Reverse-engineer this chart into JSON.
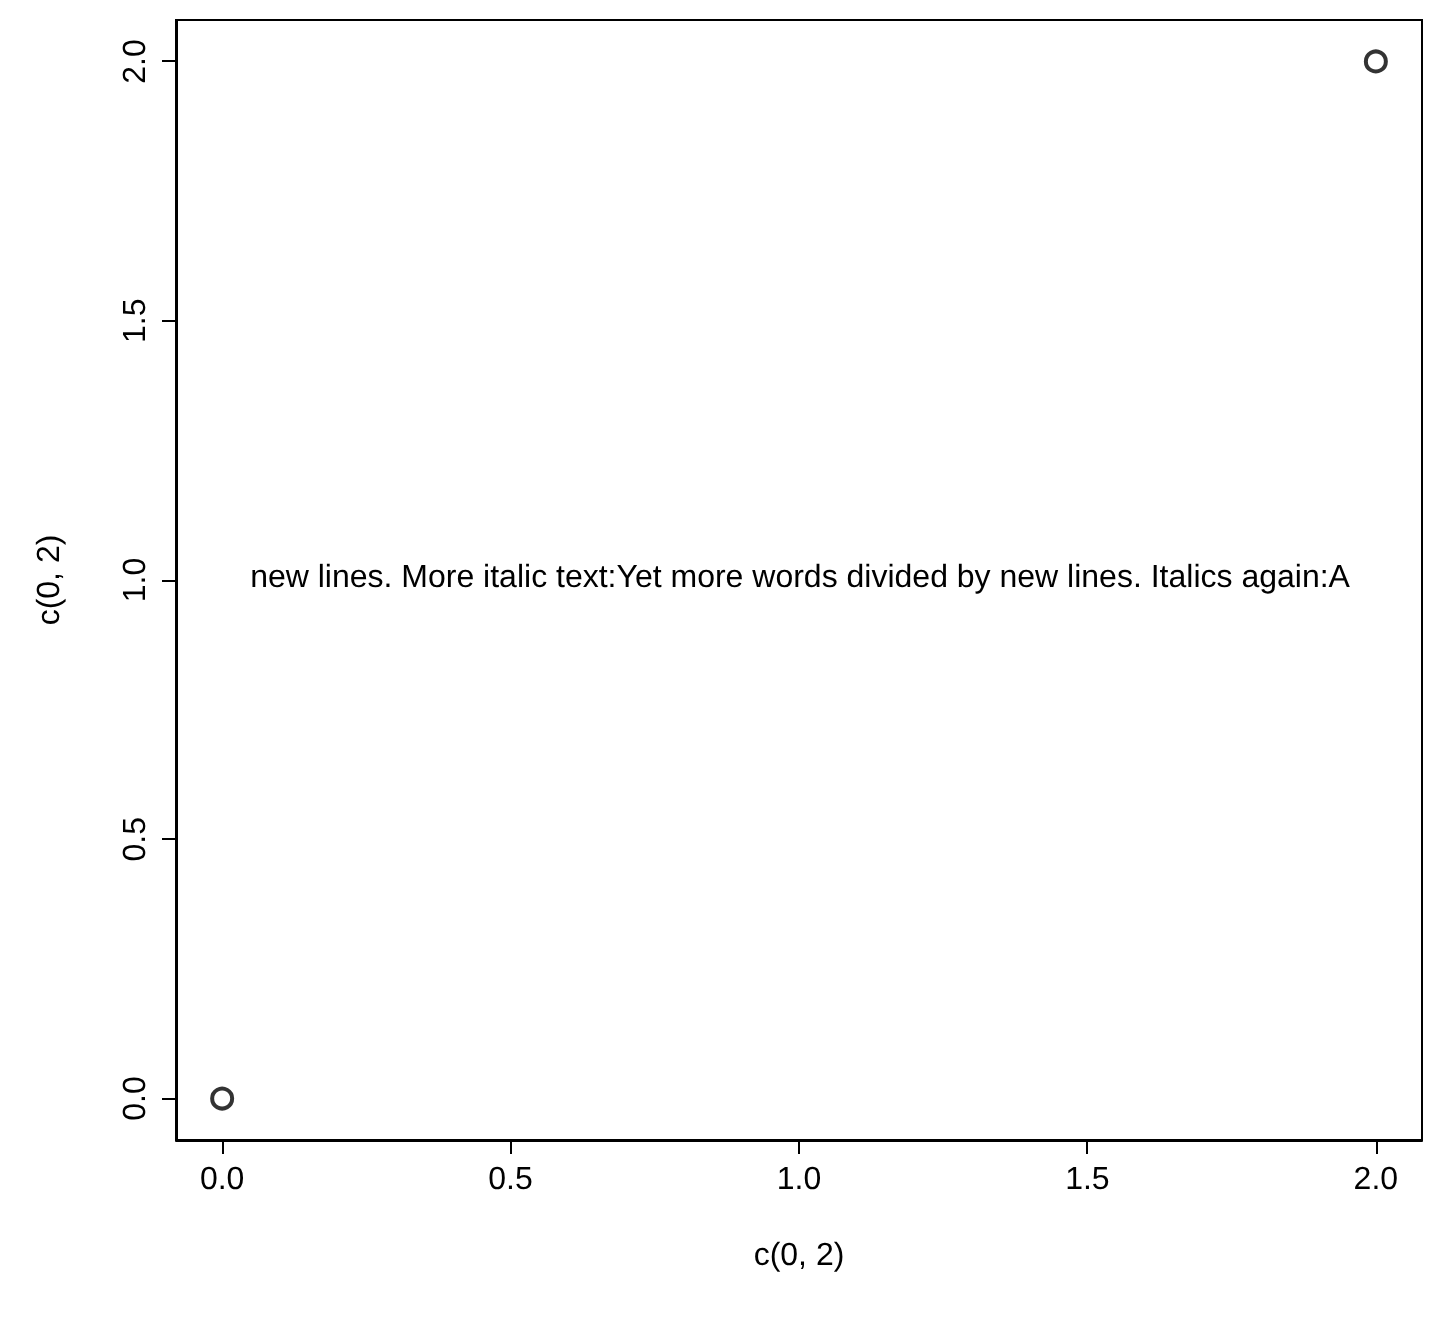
{
  "chart_data": {
    "type": "scatter",
    "xlabel": "c(0, 2)",
    "ylabel": "c(0, 2)",
    "x": [
      0,
      2
    ],
    "series": [
      {
        "color": "#000000",
        "values": [
          0,
          2
        ]
      }
    ],
    "xlim": [
      -0.08,
      2.08
    ],
    "ylim": [
      -0.08,
      2.08
    ],
    "xticks": [
      {
        "value": 0,
        "label": "0.0"
      },
      {
        "value": 0.5,
        "label": "0.5"
      },
      {
        "value": 1,
        "label": "1.0"
      },
      {
        "value": 1.5,
        "label": "1.5"
      },
      {
        "value": 2,
        "label": "2.0"
      }
    ],
    "yticks": [
      {
        "value": 0,
        "label": "0.0"
      },
      {
        "value": 0.5,
        "label": "0.5"
      },
      {
        "value": 1,
        "label": "1.0"
      },
      {
        "value": 1.5,
        "label": "1.5"
      },
      {
        "value": 2,
        "label": "2.0"
      }
    ],
    "annotations": [
      "new lines. More italic text:Yet more words divided by new lines. Italics again:A"
    ],
    "marker": "circle",
    "grid": false
  }
}
